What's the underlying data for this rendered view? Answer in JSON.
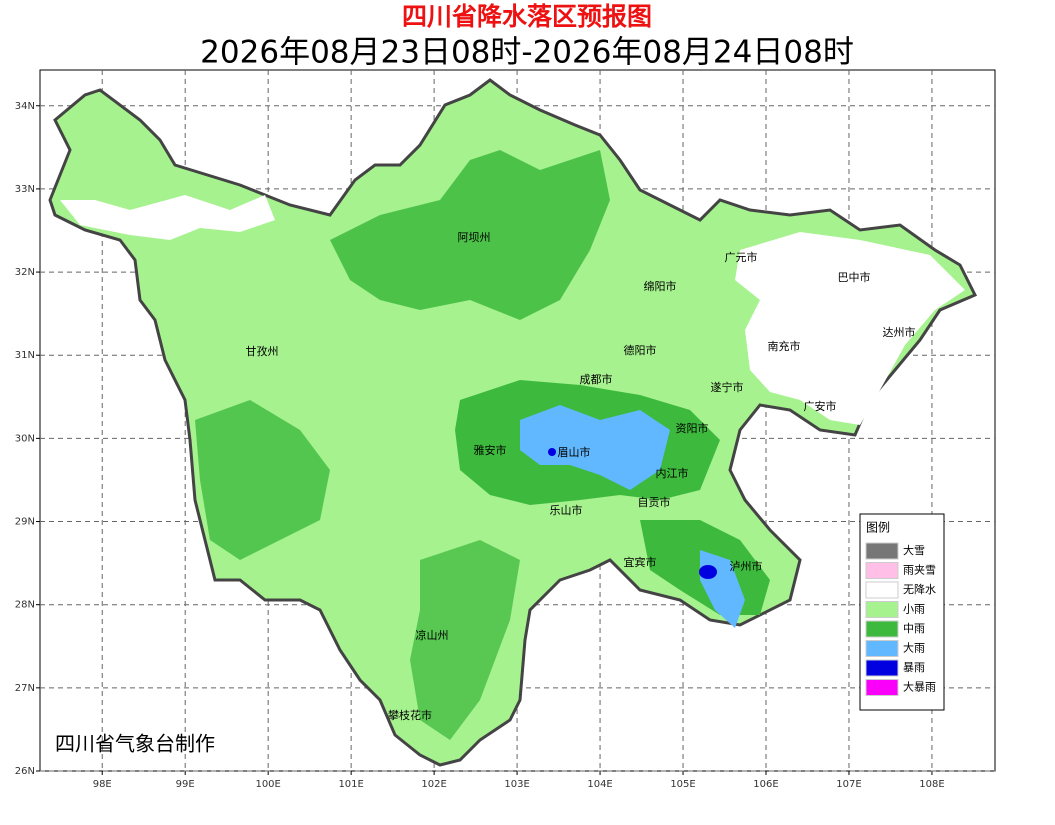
{
  "title": "四川省降水落区预报图",
  "subtitle": "2026年08月23日08时-2026年08月24日08时",
  "footer": "四川省气象台制作",
  "map": {
    "xlim": [
      97.25,
      108.76
    ],
    "ylim": [
      26,
      34.43
    ],
    "grid": true,
    "xticks": [
      {
        "value": 98,
        "label": "98E"
      },
      {
        "value": 99,
        "label": "99E"
      },
      {
        "value": 100,
        "label": "100E"
      },
      {
        "value": 101,
        "label": "101E"
      },
      {
        "value": 102,
        "label": "102E"
      },
      {
        "value": 103,
        "label": "103E"
      },
      {
        "value": 104,
        "label": "104E"
      },
      {
        "value": 105,
        "label": "105E"
      },
      {
        "value": 106,
        "label": "106E"
      },
      {
        "value": 107,
        "label": "107E"
      },
      {
        "value": 108,
        "label": "108E"
      }
    ],
    "yticks": [
      {
        "value": 26,
        "label": "26N"
      },
      {
        "value": 27,
        "label": "27N"
      },
      {
        "value": 28,
        "label": "28N"
      },
      {
        "value": 29,
        "label": "29N"
      },
      {
        "value": 30,
        "label": "30N"
      },
      {
        "value": 31,
        "label": "31N"
      },
      {
        "value": 32,
        "label": "32N"
      },
      {
        "value": 33,
        "label": "33N"
      },
      {
        "value": 34,
        "label": "34N"
      }
    ]
  },
  "cities": [
    "阿坝州",
    "甘孜州",
    "凉山州",
    "攀枝花市",
    "雅安市",
    "眉山市",
    "成都市",
    "德阳市",
    "绵阳市",
    "广元市",
    "巴中市",
    "达州市",
    "南充市",
    "遂宁市",
    "广安市",
    "资阳市",
    "内江市",
    "自贡市",
    "乐山市",
    "宜宾市",
    "泸州市"
  ],
  "legend": {
    "title": "图例",
    "items": [
      {
        "label": "大雪",
        "color": "#777777"
      },
      {
        "label": "雨夹雪",
        "color": "#ffbfe6"
      },
      {
        "label": "无降水",
        "color": "#ffffff"
      },
      {
        "label": "小雨",
        "color": "#a6f28f"
      },
      {
        "label": "中雨",
        "color": "#3dba3d"
      },
      {
        "label": "大雨",
        "color": "#61b8ff"
      },
      {
        "label": "暴雨",
        "color": "#0000e1"
      },
      {
        "label": "大暴雨",
        "color": "#fa00fa"
      }
    ]
  }
}
